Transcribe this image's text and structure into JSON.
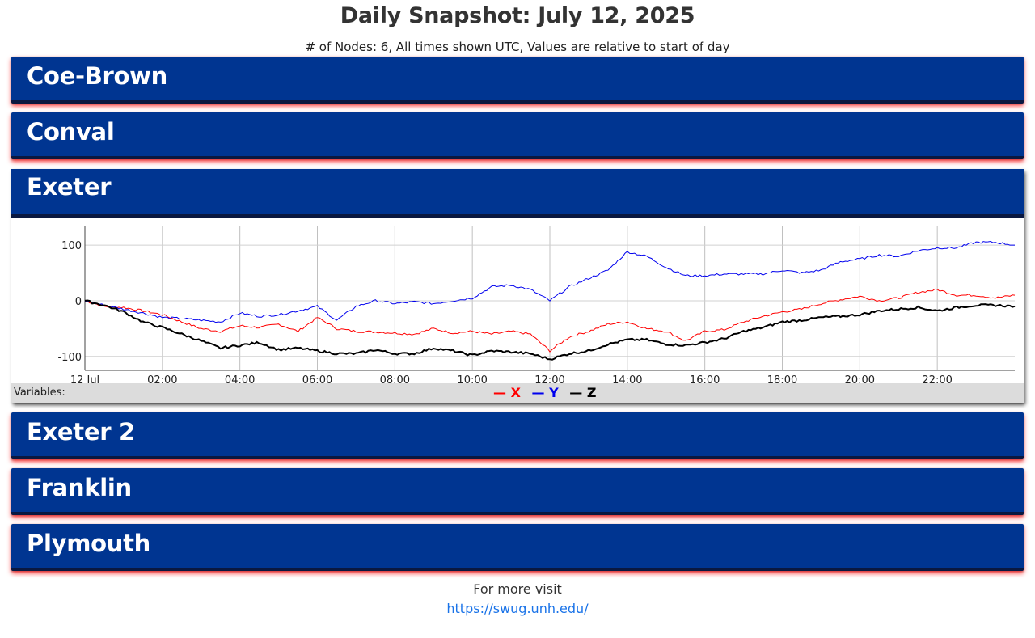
{
  "header": {
    "title": "Daily Snapshot: July 12, 2025",
    "subtitle": "# of Nodes: 6, All times shown UTC, Values are relative to start of day"
  },
  "nodes": [
    {
      "name": "Coe-Brown"
    },
    {
      "name": "Conval"
    },
    {
      "name": "Exeter"
    },
    {
      "name": "Exeter 2"
    },
    {
      "name": "Franklin"
    },
    {
      "name": "Plymouth"
    }
  ],
  "variables_label": "Variables:",
  "footer": {
    "text": "For more visit",
    "link": "https://swug.unh.edu/"
  },
  "colors": {
    "header_blue": "#003591",
    "x": "#ff0000",
    "y": "#0000ee",
    "z": "#000000"
  },
  "chart_data": {
    "type": "line",
    "node": "Exeter",
    "x_unit": "hours UTC",
    "xlim": [
      0,
      24
    ],
    "ylim": [
      -125,
      135
    ],
    "x_ticks": [
      {
        "v": 0,
        "label": "12 Jul"
      },
      {
        "v": 2,
        "label": "02:00"
      },
      {
        "v": 4,
        "label": "04:00"
      },
      {
        "v": 6,
        "label": "06:00"
      },
      {
        "v": 8,
        "label": "08:00"
      },
      {
        "v": 10,
        "label": "10:00"
      },
      {
        "v": 12,
        "label": "12:00"
      },
      {
        "v": 14,
        "label": "14:00"
      },
      {
        "v": 16,
        "label": "16:00"
      },
      {
        "v": 18,
        "label": "18:00"
      },
      {
        "v": 20,
        "label": "20:00"
      },
      {
        "v": 22,
        "label": "22:00"
      }
    ],
    "y_ticks": [
      {
        "v": 100,
        "label": "100"
      },
      {
        "v": 0,
        "label": "0"
      },
      {
        "v": -100,
        "label": "-100"
      }
    ],
    "grid": true,
    "legend": "bottom-center",
    "series": [
      {
        "name": "X",
        "color": "#ff0000",
        "x": [
          0,
          0.5,
          1,
          1.5,
          2,
          2.5,
          3,
          3.5,
          4,
          4.5,
          5,
          5.5,
          6,
          6.5,
          7,
          7.5,
          8,
          8.5,
          9,
          9.5,
          10,
          10.5,
          11,
          11.5,
          12,
          12.5,
          13,
          13.5,
          14,
          14.5,
          15,
          15.5,
          16,
          16.5,
          17,
          17.5,
          18,
          18.5,
          19,
          19.5,
          20,
          20.5,
          21,
          21.5,
          22,
          22.5,
          23,
          23.5,
          24
        ],
        "values": [
          0,
          -10,
          -12,
          -18,
          -25,
          -38,
          -50,
          -55,
          -45,
          -48,
          -42,
          -55,
          -30,
          -50,
          -55,
          -56,
          -58,
          -60,
          -50,
          -58,
          -55,
          -60,
          -55,
          -60,
          -90,
          -65,
          -55,
          -42,
          -38,
          -50,
          -55,
          -72,
          -55,
          -52,
          -38,
          -28,
          -20,
          -15,
          -5,
          2,
          8,
          0,
          5,
          15,
          20,
          10,
          10,
          5,
          10
        ]
      },
      {
        "name": "Y",
        "color": "#0000ee",
        "x": [
          0,
          0.5,
          1,
          1.5,
          2,
          2.5,
          3,
          3.5,
          4,
          4.5,
          5,
          5.5,
          6,
          6.5,
          7,
          7.5,
          8,
          8.5,
          9,
          9.5,
          10,
          10.5,
          11,
          11.5,
          12,
          12.5,
          13,
          13.5,
          14,
          14.5,
          15,
          15.5,
          16,
          16.5,
          17,
          17.5,
          18,
          18.5,
          19,
          19.5,
          20,
          20.5,
          21,
          21.5,
          22,
          22.5,
          23,
          23.5,
          24
        ],
        "values": [
          0,
          -8,
          -15,
          -22,
          -30,
          -32,
          -35,
          -38,
          -22,
          -28,
          -25,
          -18,
          -10,
          -35,
          -10,
          0,
          -5,
          -2,
          -5,
          0,
          5,
          25,
          28,
          20,
          0,
          25,
          40,
          55,
          88,
          80,
          60,
          45,
          45,
          48,
          48,
          48,
          55,
          50,
          55,
          70,
          75,
          82,
          80,
          90,
          95,
          95,
          105,
          105,
          100
        ]
      },
      {
        "name": "Z",
        "color": "#000000",
        "x": [
          0,
          0.5,
          1,
          1.5,
          2,
          2.5,
          3,
          3.5,
          4,
          4.5,
          5,
          5.5,
          6,
          6.5,
          7,
          7.5,
          8,
          8.5,
          9,
          9.5,
          10,
          10.5,
          11,
          11.5,
          12,
          12.5,
          13,
          13.5,
          14,
          14.5,
          15,
          15.5,
          16,
          16.5,
          17,
          17.5,
          18,
          18.5,
          19,
          19.5,
          20,
          20.5,
          21,
          21.5,
          22,
          22.5,
          23,
          23.5,
          24
        ],
        "values": [
          0,
          -8,
          -20,
          -38,
          -48,
          -60,
          -72,
          -85,
          -80,
          -75,
          -88,
          -85,
          -90,
          -95,
          -95,
          -88,
          -95,
          -95,
          -85,
          -90,
          -98,
          -90,
          -92,
          -95,
          -105,
          -95,
          -90,
          -78,
          -70,
          -70,
          -78,
          -80,
          -75,
          -68,
          -55,
          -48,
          -38,
          -35,
          -30,
          -28,
          -25,
          -18,
          -15,
          -12,
          -18,
          -12,
          -8,
          -8,
          -10
        ]
      }
    ]
  }
}
